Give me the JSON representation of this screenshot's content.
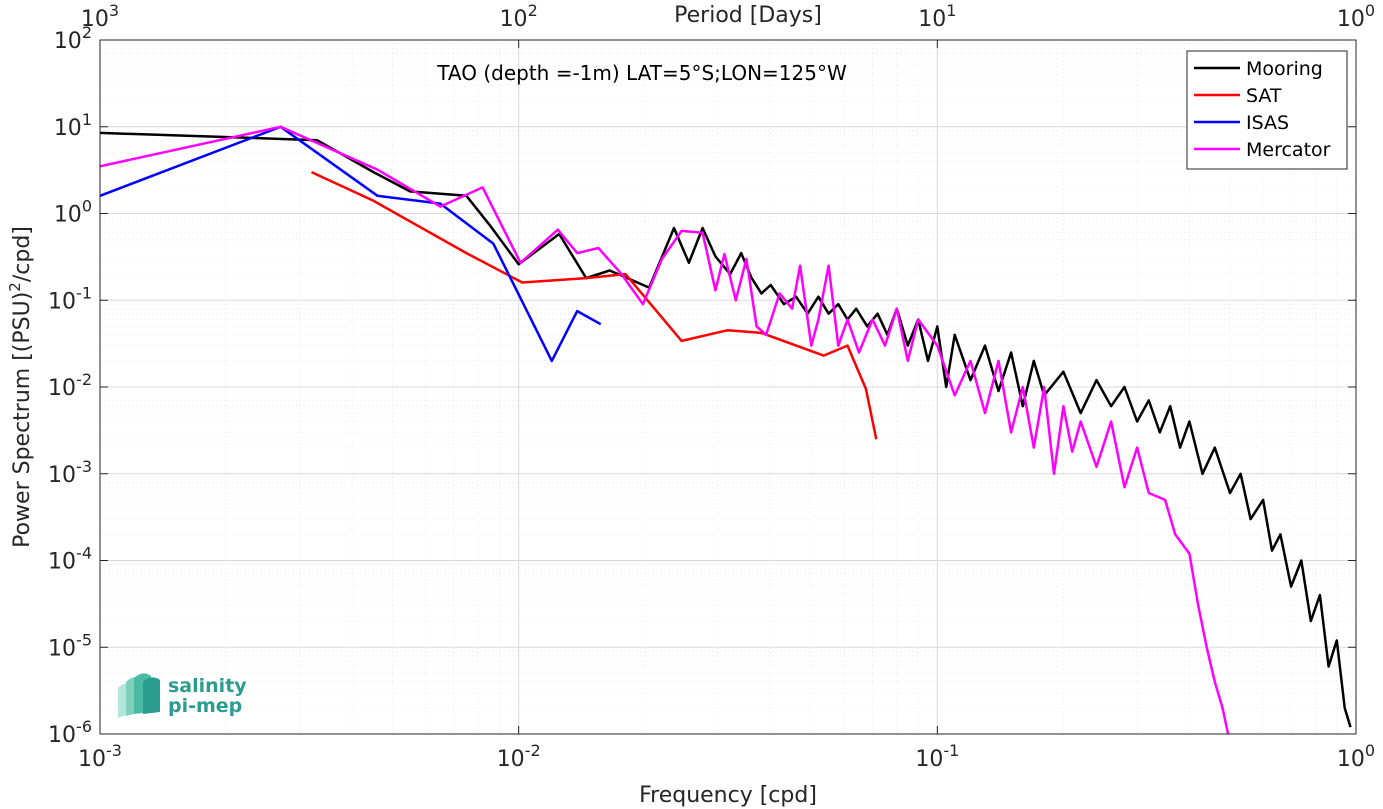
{
  "chart_data": {
    "type": "line",
    "title": "TAO (depth =-1m) LAT=5°S;LON=125°W",
    "xlabel": "Frequency [cpd]",
    "ylabel": "Power Spectrum [(PSU)²/cpd]",
    "top_xlabel": "Period [Days]",
    "xscale": "log",
    "yscale": "log",
    "xlim": [
      0.001,
      1
    ],
    "ylim": [
      1e-06,
      100
    ],
    "xtick_labels": [
      "10^-3",
      "10^-2",
      "10^-1",
      "10^0"
    ],
    "ytick_labels": [
      "10^-6",
      "10^-5",
      "10^-4",
      "10^-3",
      "10^-2",
      "10^-1",
      "10^0",
      "10^1",
      "10^2"
    ],
    "top_tick_labels": [
      "10^3",
      "10^2",
      "10^1",
      "10^0"
    ],
    "grid": true,
    "legend_position": "top-right",
    "series": [
      {
        "name": "Mooring",
        "color": "#000000",
        "points": [
          [
            0.001,
            8.5
          ],
          [
            0.0022,
            7.5
          ],
          [
            0.0033,
            7.0
          ],
          [
            0.0045,
            3.0
          ],
          [
            0.0055,
            1.8
          ],
          [
            0.0075,
            1.6
          ],
          [
            0.0085,
            0.75
          ],
          [
            0.01,
            0.26
          ],
          [
            0.0125,
            0.58
          ],
          [
            0.0145,
            0.18
          ],
          [
            0.0165,
            0.22
          ],
          [
            0.0205,
            0.14
          ],
          [
            0.0235,
            0.68
          ],
          [
            0.0255,
            0.27
          ],
          [
            0.0275,
            0.68
          ],
          [
            0.0295,
            0.32
          ],
          [
            0.032,
            0.2
          ],
          [
            0.034,
            0.35
          ],
          [
            0.036,
            0.18
          ],
          [
            0.038,
            0.12
          ],
          [
            0.04,
            0.15
          ],
          [
            0.043,
            0.09
          ],
          [
            0.046,
            0.11
          ],
          [
            0.049,
            0.07
          ],
          [
            0.052,
            0.11
          ],
          [
            0.055,
            0.07
          ],
          [
            0.058,
            0.09
          ],
          [
            0.061,
            0.06
          ],
          [
            0.064,
            0.08
          ],
          [
            0.068,
            0.05
          ],
          [
            0.072,
            0.07
          ],
          [
            0.076,
            0.04
          ],
          [
            0.08,
            0.08
          ],
          [
            0.085,
            0.03
          ],
          [
            0.09,
            0.06
          ],
          [
            0.095,
            0.02
          ],
          [
            0.1,
            0.05
          ],
          [
            0.105,
            0.01
          ],
          [
            0.11,
            0.04
          ],
          [
            0.12,
            0.012
          ],
          [
            0.13,
            0.03
          ],
          [
            0.14,
            0.009
          ],
          [
            0.15,
            0.025
          ],
          [
            0.16,
            0.006
          ],
          [
            0.17,
            0.02
          ],
          [
            0.18,
            0.008
          ],
          [
            0.2,
            0.015
          ],
          [
            0.22,
            0.005
          ],
          [
            0.24,
            0.012
          ],
          [
            0.26,
            0.006
          ],
          [
            0.28,
            0.01
          ],
          [
            0.3,
            0.004
          ],
          [
            0.32,
            0.007
          ],
          [
            0.34,
            0.003
          ],
          [
            0.36,
            0.006
          ],
          [
            0.38,
            0.002
          ],
          [
            0.4,
            0.004
          ],
          [
            0.43,
            0.001
          ],
          [
            0.46,
            0.002
          ],
          [
            0.5,
            0.0006
          ],
          [
            0.53,
            0.001
          ],
          [
            0.56,
            0.0003
          ],
          [
            0.6,
            0.0005
          ],
          [
            0.63,
            0.00013
          ],
          [
            0.66,
            0.0002
          ],
          [
            0.7,
            5e-05
          ],
          [
            0.74,
            0.0001
          ],
          [
            0.78,
            2e-05
          ],
          [
            0.82,
            4e-05
          ],
          [
            0.86,
            6e-06
          ],
          [
            0.9,
            1.2e-05
          ],
          [
            0.94,
            2e-06
          ],
          [
            0.97,
            1.2e-06
          ]
        ]
      },
      {
        "name": "SAT",
        "color": "#ff0000",
        "points": [
          [
            0.0032,
            3.0
          ],
          [
            0.0045,
            1.4
          ],
          [
            0.0075,
            0.35
          ],
          [
            0.0102,
            0.16
          ],
          [
            0.0145,
            0.18
          ],
          [
            0.018,
            0.2
          ],
          [
            0.0245,
            0.034
          ],
          [
            0.0315,
            0.045
          ],
          [
            0.038,
            0.042
          ],
          [
            0.0535,
            0.023
          ],
          [
            0.061,
            0.03
          ],
          [
            0.0675,
            0.0095
          ],
          [
            0.0715,
            0.0025
          ]
        ]
      },
      {
        "name": "ISAS",
        "color": "#0000ff",
        "points": [
          [
            0.001,
            1.6
          ],
          [
            0.0027,
            10.0
          ],
          [
            0.0046,
            1.6
          ],
          [
            0.0065,
            1.3
          ],
          [
            0.0087,
            0.45
          ],
          [
            0.012,
            0.02
          ],
          [
            0.0138,
            0.075
          ],
          [
            0.0157,
            0.053
          ]
        ]
      },
      {
        "name": "Mercator",
        "color": "#ff00ff",
        "points": [
          [
            0.001,
            3.5
          ],
          [
            0.0027,
            10.0
          ],
          [
            0.0046,
            3.2
          ],
          [
            0.0065,
            1.2
          ],
          [
            0.0082,
            2.0
          ],
          [
            0.0101,
            0.27
          ],
          [
            0.0124,
            0.65
          ],
          [
            0.0138,
            0.35
          ],
          [
            0.0155,
            0.4
          ],
          [
            0.0176,
            0.2
          ],
          [
            0.0198,
            0.09
          ],
          [
            0.022,
            0.3
          ],
          [
            0.0245,
            0.63
          ],
          [
            0.0275,
            0.6
          ],
          [
            0.0295,
            0.13
          ],
          [
            0.031,
            0.34
          ],
          [
            0.033,
            0.1
          ],
          [
            0.035,
            0.3
          ],
          [
            0.037,
            0.05
          ],
          [
            0.039,
            0.04
          ],
          [
            0.042,
            0.12
          ],
          [
            0.045,
            0.08
          ],
          [
            0.047,
            0.25
          ],
          [
            0.05,
            0.03
          ],
          [
            0.052,
            0.06
          ],
          [
            0.055,
            0.25
          ],
          [
            0.058,
            0.03
          ],
          [
            0.061,
            0.06
          ],
          [
            0.065,
            0.025
          ],
          [
            0.07,
            0.06
          ],
          [
            0.075,
            0.03
          ],
          [
            0.08,
            0.08
          ],
          [
            0.085,
            0.02
          ],
          [
            0.09,
            0.06
          ],
          [
            0.1,
            0.03
          ],
          [
            0.11,
            0.008
          ],
          [
            0.12,
            0.02
          ],
          [
            0.13,
            0.005
          ],
          [
            0.14,
            0.02
          ],
          [
            0.15,
            0.003
          ],
          [
            0.16,
            0.01
          ],
          [
            0.17,
            0.002
          ],
          [
            0.18,
            0.01
          ],
          [
            0.19,
            0.001
          ],
          [
            0.2,
            0.006
          ],
          [
            0.21,
            0.0018
          ],
          [
            0.22,
            0.004
          ],
          [
            0.24,
            0.0012
          ],
          [
            0.26,
            0.004
          ],
          [
            0.28,
            0.0007
          ],
          [
            0.3,
            0.002
          ],
          [
            0.32,
            0.0006
          ],
          [
            0.35,
            0.0005
          ],
          [
            0.37,
            0.0002
          ],
          [
            0.4,
            0.00012
          ],
          [
            0.42,
            3e-05
          ],
          [
            0.44,
            1e-05
          ],
          [
            0.46,
            4e-06
          ],
          [
            0.48,
            2e-06
          ],
          [
            0.495,
            1e-06
          ]
        ]
      }
    ]
  },
  "logo": {
    "line1": "salinity",
    "line2": "pi-mep"
  }
}
